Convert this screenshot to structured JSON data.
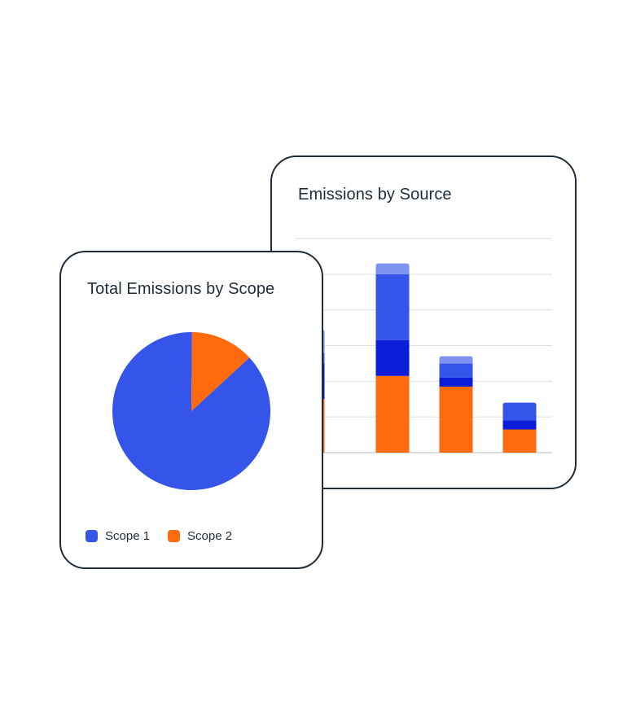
{
  "colors": {
    "scope1": "#3555ea",
    "scope1_dark": "#0b1dd6",
    "scope1_light": "#7e93f1",
    "scope2": "#ff6a0d",
    "border": "#1f2d3a",
    "grid": "#dcdfe3"
  },
  "chart_data": [
    {
      "type": "bar",
      "title": "Emissions by Source",
      "stacked": true,
      "categories": [
        "",
        "",
        "",
        ""
      ],
      "ylim": [
        0,
        120
      ],
      "grid": true,
      "series": [
        {
          "values": [
            30,
            43,
            37,
            13
          ]
        },
        {
          "values": [
            20,
            20,
            5,
            5
          ]
        },
        {
          "values": [
            6,
            37,
            8,
            10
          ]
        },
        {
          "values": [
            13,
            6,
            4,
            0
          ]
        }
      ]
    },
    {
      "type": "pie",
      "title": "Total Emissions by Scope",
      "labels": [
        "Scope 1",
        "Scope 2"
      ],
      "values": [
        87,
        13
      ],
      "legend": "bottom"
    }
  ]
}
